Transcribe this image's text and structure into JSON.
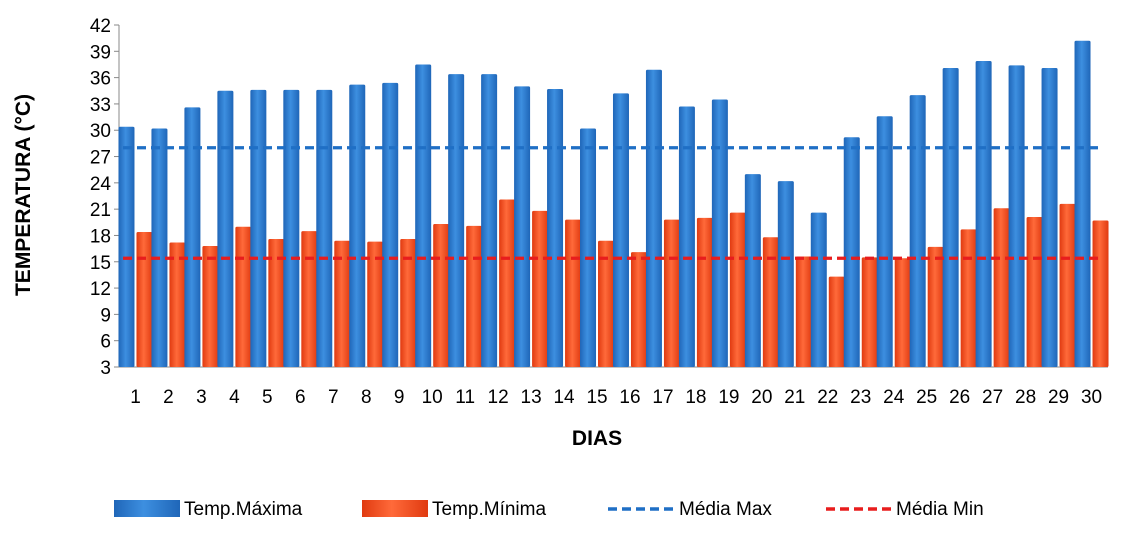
{
  "chart_data": {
    "type": "bar",
    "title": "",
    "xlabel": "DIAS",
    "ylabel": "TEMPERATURA (°C)",
    "ylim": [
      3,
      42
    ],
    "yticks": [
      3,
      6,
      9,
      12,
      15,
      18,
      21,
      24,
      27,
      30,
      33,
      36,
      39,
      42
    ],
    "grid": false,
    "legend_position": "bottom",
    "categories": [
      "1",
      "2",
      "3",
      "4",
      "5",
      "6",
      "7",
      "8",
      "9",
      "10",
      "11",
      "12",
      "13",
      "14",
      "15",
      "16",
      "17",
      "18",
      "19",
      "20",
      "21",
      "22",
      "23",
      "24",
      "25",
      "26",
      "27",
      "28",
      "29",
      "30"
    ],
    "series": [
      {
        "name": "Temp.Máxima",
        "type": "bar",
        "color": "#2e7bd1",
        "values": [
          30.4,
          30.2,
          32.6,
          34.5,
          34.6,
          34.6,
          34.6,
          35.2,
          35.4,
          37.5,
          36.4,
          36.4,
          35.0,
          34.7,
          30.2,
          34.2,
          36.9,
          32.7,
          33.5,
          25.0,
          24.2,
          20.6,
          29.2,
          31.6,
          34.0,
          37.1,
          37.9,
          37.4,
          37.1,
          40.2
        ]
      },
      {
        "name": "Temp.Mínima",
        "type": "bar",
        "color": "#f24a1c",
        "values": [
          18.4,
          17.2,
          16.8,
          19.0,
          17.6,
          18.5,
          17.4,
          17.3,
          17.6,
          19.3,
          19.1,
          22.1,
          20.8,
          19.8,
          17.4,
          16.1,
          19.8,
          20.0,
          20.6,
          17.8,
          15.6,
          13.3,
          15.5,
          15.4,
          16.7,
          18.7,
          21.1,
          20.1,
          21.6,
          19.7
        ]
      },
      {
        "name": "Média Max",
        "type": "line",
        "style": "dashed",
        "color": "#1f6fc5",
        "value": 28.0
      },
      {
        "name": "Média Min",
        "type": "line",
        "style": "dashed",
        "color": "#e81d1d",
        "value": 15.4
      }
    ]
  }
}
